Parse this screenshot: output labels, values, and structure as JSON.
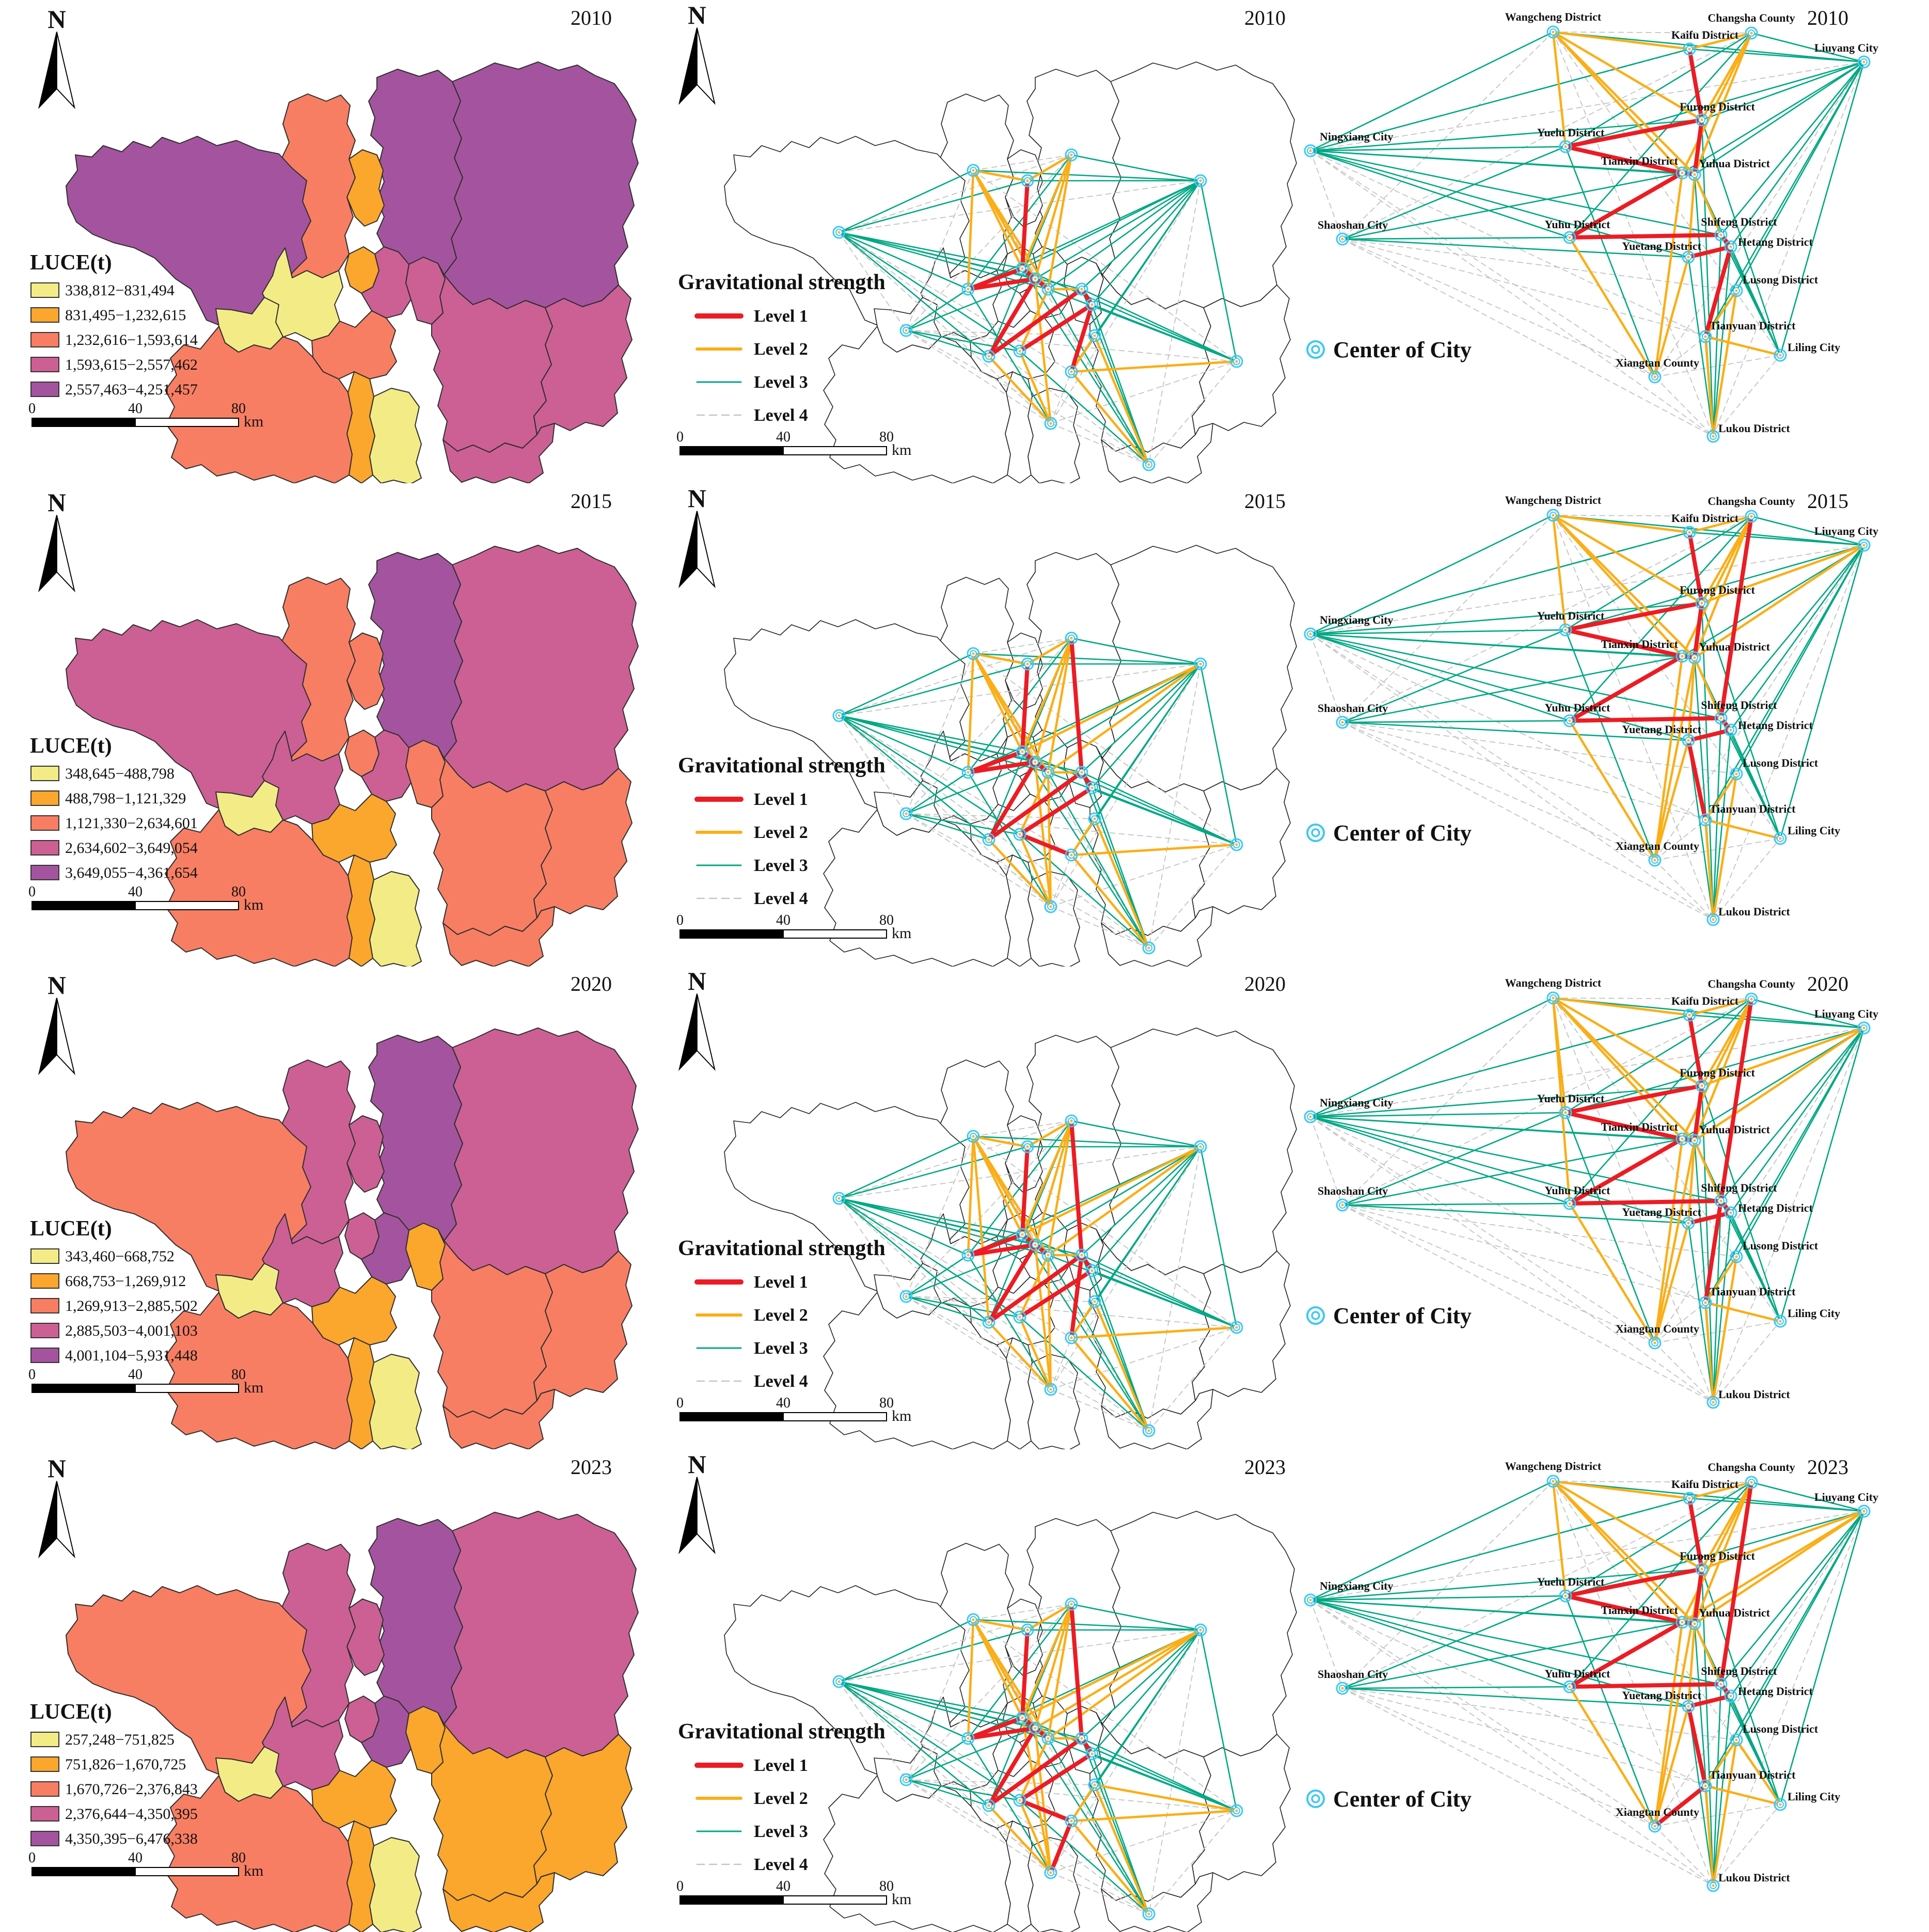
{
  "figure_type": "multi-panel map figure: land-use carbon emissions (LUCE) choropleths, gravitational-strength networks on boundary maps, and city-center gravity network diagrams for 2010, 2015, 2020, 2023",
  "colors": {
    "class_fills": [
      "#F3EC86",
      "#FBA62D",
      "#F87E63",
      "#CC6094",
      "#A4549E"
    ],
    "level1_red": "#EC1C24",
    "level2_orange": "#FBAE17",
    "level3_teal": "#00A884",
    "level4_gray": "#C4C4C4",
    "node_cyan": "#3FC8F4",
    "node_dot": "#FBB03B",
    "boundary": "#2E2E2E"
  },
  "shared": {
    "north_label": "N",
    "luce_title": "LUCE(t)",
    "grav_title": "Gravitational strength",
    "grav_levels": [
      "Level 1",
      "Level 2",
      "Level 3",
      "Level 4"
    ],
    "center_legend": "Center of City",
    "scalebar": {
      "ticks": [
        "0",
        "40",
        "80"
      ],
      "unit": "km"
    }
  },
  "nodes": [
    {
      "id": "wc",
      "label": "Wangcheng District",
      "net": [
        488,
        62
      ],
      "map": [
        610,
        330
      ],
      "lab": [
        0,
        -22,
        "middle"
      ]
    },
    {
      "id": "cc",
      "label": "Changsha County",
      "net": [
        872,
        64
      ],
      "map": [
        800,
        300
      ],
      "lab": [
        0,
        -22,
        "middle"
      ]
    },
    {
      "id": "kf",
      "label": "Kaifu District",
      "net": [
        752,
        95
      ],
      "map": [
        715,
        350
      ],
      "lab": [
        30,
        -20,
        "middle"
      ]
    },
    {
      "id": "ly",
      "label": "Liuyang City",
      "net": [
        1090,
        120
      ],
      "map": [
        1050,
        350
      ],
      "lab": [
        28,
        -20,
        "end"
      ]
    },
    {
      "id": "fr",
      "label": "Furong District",
      "net": [
        776,
        232
      ],
      "map": [
        705,
        520
      ],
      "lab": [
        30,
        -18,
        "middle"
      ]
    },
    {
      "id": "nx",
      "label": "Ningxiang City",
      "net": [
        18,
        292
      ],
      "map": [
        350,
        450
      ],
      "lab": [
        18,
        -20,
        "start"
      ]
    },
    {
      "id": "yl",
      "label": "Yuelu District",
      "net": [
        512,
        284
      ],
      "map": [
        600,
        560
      ],
      "lab": [
        10,
        -20,
        "middle"
      ]
    },
    {
      "id": "tx",
      "label": "Tianxin District",
      "net": [
        738,
        335
      ],
      "map": [
        730,
        540
      ],
      "lab": [
        -8,
        -16,
        "end"
      ]
    },
    {
      "id": "yh",
      "label": "Yuhua District",
      "net": [
        762,
        338
      ],
      "map": [
        755,
        560
      ],
      "lab": [
        8,
        -14,
        "start"
      ]
    },
    {
      "id": "ss",
      "label": "Shaoshan City",
      "net": [
        80,
        463
      ],
      "map": [
        480,
        640
      ],
      "lab": [
        20,
        -20,
        "middle"
      ]
    },
    {
      "id": "yu",
      "label": "Yuhu District",
      "net": [
        520,
        460
      ],
      "map": [
        640,
        690
      ],
      "lab": [
        15,
        -18,
        "middle"
      ]
    },
    {
      "id": "sf",
      "label": "Shifeng District",
      "net": [
        813,
        455
      ],
      "map": [
        820,
        560
      ],
      "lab": [
        35,
        -18,
        "middle"
      ]
    },
    {
      "id": "ht",
      "label": "Hetang District",
      "net": [
        832,
        478
      ],
      "map": [
        840,
        590
      ],
      "lab": [
        14,
        -2,
        "start"
      ]
    },
    {
      "id": "yt",
      "label": "Yuetang District",
      "net": [
        750,
        498
      ],
      "map": [
        700,
        680
      ],
      "lab": [
        25,
        -14,
        "end"
      ]
    },
    {
      "id": "ls",
      "label": "Lusong District",
      "net": [
        843,
        563
      ],
      "map": [
        845,
        650
      ],
      "lab": [
        12,
        -14,
        "start"
      ]
    },
    {
      "id": "ty",
      "label": "Tianyuan District",
      "net": [
        783,
        652
      ],
      "map": [
        800,
        720
      ],
      "lab": [
        8,
        -14,
        "start"
      ]
    },
    {
      "id": "ll",
      "label": "Liling City",
      "net": [
        928,
        688
      ],
      "map": [
        1120,
        700
      ],
      "lab": [
        14,
        -8,
        "start"
      ]
    },
    {
      "id": "xc",
      "label": "Xiangtan County",
      "net": [
        685,
        730
      ],
      "map": [
        760,
        820
      ],
      "lab": [
        5,
        -20,
        "middle"
      ]
    },
    {
      "id": "lk",
      "label": "Lukou District",
      "net": [
        798,
        845
      ],
      "map": [
        950,
        900
      ],
      "lab": [
        10,
        -8,
        "start"
      ]
    }
  ],
  "region_order": [
    "liuyang",
    "changsha",
    "wangcheng",
    "ningxiang",
    "zhuzhou",
    "liling",
    "lukou",
    "southwest",
    "yuelu",
    "kaifu",
    "furong",
    "tianxin",
    "shifeng",
    "shaoshan",
    "yuhu",
    "strip",
    "county"
  ],
  "edges_common": {
    "l4": [
      [
        "wc",
        "ly"
      ],
      [
        "wc",
        "nx"
      ],
      [
        "wc",
        "ss"
      ],
      [
        "wc",
        "ll"
      ],
      [
        "wc",
        "cc"
      ],
      [
        "cc",
        "ly"
      ],
      [
        "cc",
        "nx"
      ],
      [
        "cc",
        "ss"
      ],
      [
        "nx",
        "ss"
      ],
      [
        "nx",
        "xc"
      ],
      [
        "nx",
        "lk"
      ],
      [
        "nx",
        "ly"
      ],
      [
        "nx",
        "ty"
      ],
      [
        "ss",
        "xc"
      ],
      [
        "ss",
        "lk"
      ],
      [
        "ss",
        "ll"
      ],
      [
        "ss",
        "ls"
      ],
      [
        "xc",
        "ll"
      ],
      [
        "xc",
        "lk"
      ],
      [
        "xc",
        "ty"
      ],
      [
        "lk",
        "ll"
      ],
      [
        "ly",
        "lk"
      ],
      [
        "ly",
        "xc"
      ],
      [
        "wc",
        "lk"
      ]
    ],
    "l3": [
      [
        "nx",
        "kf"
      ],
      [
        "nx",
        "fr"
      ],
      [
        "nx",
        "yl"
      ],
      [
        "nx",
        "tx"
      ],
      [
        "nx",
        "yh"
      ],
      [
        "nx",
        "yu"
      ],
      [
        "nx",
        "yt"
      ],
      [
        "nx",
        "sf"
      ],
      [
        "nx",
        "wc"
      ],
      [
        "ly",
        "wc"
      ],
      [
        "ly",
        "kf"
      ],
      [
        "ly",
        "fr"
      ],
      [
        "ly",
        "yl"
      ],
      [
        "ly",
        "tx"
      ],
      [
        "ly",
        "yh"
      ],
      [
        "ly",
        "sf"
      ],
      [
        "ly",
        "ht"
      ],
      [
        "ly",
        "ls"
      ],
      [
        "ly",
        "ty"
      ],
      [
        "ly",
        "ll"
      ],
      [
        "ly",
        "cc"
      ],
      [
        "ss",
        "yl"
      ],
      [
        "ss",
        "yu"
      ],
      [
        "ss",
        "yt"
      ],
      [
        "ss",
        "tx"
      ],
      [
        "ll",
        "sf"
      ],
      [
        "ll",
        "ht"
      ],
      [
        "ll",
        "yh"
      ],
      [
        "ll",
        "fr"
      ],
      [
        "lk",
        "sf"
      ],
      [
        "lk",
        "ht"
      ],
      [
        "lk",
        "ls"
      ],
      [
        "lk",
        "ty"
      ],
      [
        "lk",
        "yh"
      ],
      [
        "lk",
        "yt"
      ],
      [
        "lk",
        "fr"
      ],
      [
        "xc",
        "yl"
      ],
      [
        "xc",
        "yu"
      ],
      [
        "cc",
        "yl"
      ],
      [
        "cc",
        "yu"
      ]
    ]
  },
  "years": [
    {
      "year": "2010",
      "luce_classes": [
        "338,812−831,494",
        "831,495−1,232,615",
        "1,232,616−1,593,614",
        "1,593,615−2,557,462",
        "2,557,463−4,251,457"
      ],
      "region_classes": {
        "ningxiang": 5,
        "wangcheng": 3,
        "kaifu": 2,
        "changsha": 5,
        "liuyang": 5,
        "yuelu": 1,
        "furong": 2,
        "tianxin": 4,
        "shifeng": 4,
        "shaoshan": 1,
        "yuhu": 3,
        "strip": 2,
        "county": 1,
        "southwest": 3,
        "zhuzhou": 4,
        "liling": 4,
        "lukou": 4
      },
      "edges": {
        "l1": [
          [
            "kf",
            "fr"
          ],
          [
            "fr",
            "yl"
          ],
          [
            "yl",
            "tx"
          ],
          [
            "tx",
            "yh"
          ],
          [
            "fr",
            "yh"
          ],
          [
            "tx",
            "yu"
          ],
          [
            "yu",
            "sf"
          ],
          [
            "sf",
            "ht"
          ],
          [
            "ht",
            "yt"
          ],
          [
            "ht",
            "ty"
          ]
        ],
        "l2": [
          [
            "wc",
            "kf"
          ],
          [
            "wc",
            "fr"
          ],
          [
            "wc",
            "yl"
          ],
          [
            "wc",
            "tx"
          ],
          [
            "wc",
            "yh"
          ],
          [
            "cc",
            "kf"
          ],
          [
            "cc",
            "fr"
          ],
          [
            "cc",
            "tx"
          ],
          [
            "cc",
            "yh"
          ],
          [
            "xc",
            "yu"
          ],
          [
            "xc",
            "yt"
          ],
          [
            "xc",
            "tx"
          ],
          [
            "ty",
            "ll"
          ],
          [
            "ty",
            "ls"
          ],
          [
            "ty",
            "lk"
          ],
          [
            "ls",
            "lk"
          ],
          [
            "yh",
            "sf"
          ],
          [
            "yh",
            "yt"
          ]
        ]
      }
    },
    {
      "year": "2015",
      "luce_classes": [
        "348,645−488,798",
        "488,798−1,121,329",
        "1,121,330−2,634,601",
        "2,634,602−3,649,054",
        "3,649,055−4,361,654"
      ],
      "region_classes": {
        "ningxiang": 4,
        "wangcheng": 3,
        "kaifu": 3,
        "changsha": 5,
        "liuyang": 4,
        "yuelu": 4,
        "furong": 3,
        "tianxin": 4,
        "shifeng": 3,
        "shaoshan": 1,
        "yuhu": 2,
        "strip": 2,
        "county": 1,
        "southwest": 3,
        "zhuzhou": 3,
        "liling": 3,
        "lukou": 3
      },
      "edges": {
        "l1": [
          [
            "kf",
            "fr"
          ],
          [
            "fr",
            "yl"
          ],
          [
            "yl",
            "tx"
          ],
          [
            "tx",
            "yh"
          ],
          [
            "fr",
            "yh"
          ],
          [
            "tx",
            "yu"
          ],
          [
            "yu",
            "sf"
          ],
          [
            "sf",
            "ht"
          ],
          [
            "ht",
            "yt"
          ],
          [
            "cc",
            "sf"
          ],
          [
            "yt",
            "ty"
          ]
        ],
        "l2": [
          [
            "wc",
            "kf"
          ],
          [
            "wc",
            "fr"
          ],
          [
            "wc",
            "yl"
          ],
          [
            "wc",
            "tx"
          ],
          [
            "wc",
            "yh"
          ],
          [
            "cc",
            "kf"
          ],
          [
            "cc",
            "fr"
          ],
          [
            "cc",
            "tx"
          ],
          [
            "cc",
            "yh"
          ],
          [
            "xc",
            "yu"
          ],
          [
            "xc",
            "yt"
          ],
          [
            "xc",
            "tx"
          ],
          [
            "xc",
            "yh"
          ],
          [
            "ty",
            "ll"
          ],
          [
            "ty",
            "ls"
          ],
          [
            "ty",
            "lk"
          ],
          [
            "ls",
            "lk"
          ],
          [
            "yh",
            "sf"
          ],
          [
            "yh",
            "yt"
          ],
          [
            "ly",
            "fr"
          ],
          [
            "ly",
            "yh"
          ]
        ]
      }
    },
    {
      "year": "2020",
      "luce_classes": [
        "343,460−668,752",
        "668,753−1,269,912",
        "1,269,913−2,885,502",
        "2,885,503−4,001,103",
        "4,001,104−5,931,448"
      ],
      "region_classes": {
        "ningxiang": 3,
        "wangcheng": 4,
        "kaifu": 4,
        "changsha": 5,
        "liuyang": 4,
        "yuelu": 4,
        "furong": 4,
        "tianxin": 5,
        "shifeng": 2,
        "shaoshan": 1,
        "yuhu": 2,
        "strip": 2,
        "county": 1,
        "southwest": 3,
        "zhuzhou": 3,
        "liling": 3,
        "lukou": 3
      },
      "edges": {
        "l1": [
          [
            "kf",
            "fr"
          ],
          [
            "fr",
            "yl"
          ],
          [
            "yl",
            "tx"
          ],
          [
            "tx",
            "yh"
          ],
          [
            "fr",
            "yh"
          ],
          [
            "tx",
            "yu"
          ],
          [
            "yu",
            "sf"
          ],
          [
            "sf",
            "ht"
          ],
          [
            "ht",
            "yt"
          ],
          [
            "cc",
            "sf"
          ],
          [
            "sf",
            "ty"
          ]
        ],
        "l2": [
          [
            "wc",
            "kf"
          ],
          [
            "wc",
            "fr"
          ],
          [
            "wc",
            "yl"
          ],
          [
            "wc",
            "tx"
          ],
          [
            "wc",
            "yh"
          ],
          [
            "wc",
            "yu"
          ],
          [
            "cc",
            "kf"
          ],
          [
            "cc",
            "fr"
          ],
          [
            "cc",
            "tx"
          ],
          [
            "cc",
            "yh"
          ],
          [
            "xc",
            "yu"
          ],
          [
            "xc",
            "yt"
          ],
          [
            "xc",
            "tx"
          ],
          [
            "xc",
            "yh"
          ],
          [
            "ty",
            "ll"
          ],
          [
            "ty",
            "ls"
          ],
          [
            "ty",
            "lk"
          ],
          [
            "ls",
            "lk"
          ],
          [
            "yh",
            "sf"
          ],
          [
            "yh",
            "yt"
          ],
          [
            "ly",
            "fr"
          ],
          [
            "ly",
            "yh"
          ]
        ]
      }
    },
    {
      "year": "2023",
      "luce_classes": [
        "257,248−751,825",
        "751,826−1,670,725",
        "1,670,726−2,376,843",
        "2,376,644−4,350,395",
        "4,350,395−6,476,338"
      ],
      "region_classes": {
        "ningxiang": 3,
        "wangcheng": 4,
        "kaifu": 4,
        "changsha": 5,
        "liuyang": 4,
        "yuelu": 4,
        "furong": 4,
        "tianxin": 5,
        "shifeng": 2,
        "shaoshan": 1,
        "yuhu": 2,
        "strip": 2,
        "county": 1,
        "southwest": 3,
        "zhuzhou": 2,
        "liling": 2,
        "lukou": 2
      },
      "edges": {
        "l1": [
          [
            "kf",
            "fr"
          ],
          [
            "fr",
            "yl"
          ],
          [
            "yl",
            "tx"
          ],
          [
            "tx",
            "yh"
          ],
          [
            "fr",
            "yh"
          ],
          [
            "tx",
            "yu"
          ],
          [
            "yu",
            "sf"
          ],
          [
            "sf",
            "ht"
          ],
          [
            "ht",
            "yt"
          ],
          [
            "cc",
            "sf"
          ],
          [
            "yt",
            "ty"
          ],
          [
            "ty",
            "xc"
          ]
        ],
        "l2": [
          [
            "wc",
            "kf"
          ],
          [
            "wc",
            "fr"
          ],
          [
            "wc",
            "yl"
          ],
          [
            "wc",
            "tx"
          ],
          [
            "wc",
            "yh"
          ],
          [
            "cc",
            "kf"
          ],
          [
            "cc",
            "fr"
          ],
          [
            "cc",
            "tx"
          ],
          [
            "cc",
            "yh"
          ],
          [
            "xc",
            "yu"
          ],
          [
            "xc",
            "yt"
          ],
          [
            "xc",
            "tx"
          ],
          [
            "xc",
            "fr"
          ],
          [
            "ty",
            "ll"
          ],
          [
            "ty",
            "ls"
          ],
          [
            "ty",
            "lk"
          ],
          [
            "ls",
            "lk"
          ],
          [
            "ll",
            "ls"
          ],
          [
            "yh",
            "sf"
          ],
          [
            "yh",
            "yt"
          ],
          [
            "ly",
            "fr"
          ],
          [
            "ly",
            "yh"
          ],
          [
            "ly",
            "tx"
          ]
        ]
      }
    }
  ]
}
